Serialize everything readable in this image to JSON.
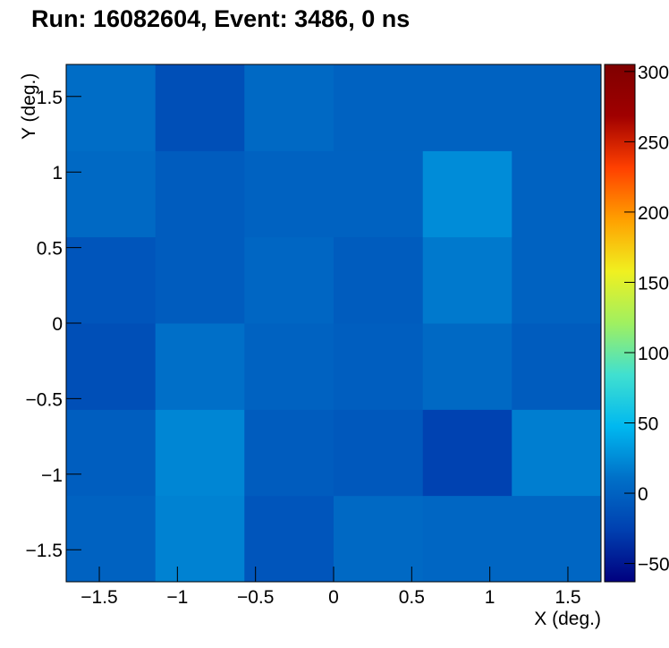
{
  "chart_data": {
    "type": "heatmap",
    "title": "Run: 16082604, Event: 3486, 0 ns",
    "x_label": "X (deg.)",
    "y_label": "Y (deg.)",
    "x_bins": [
      -1.712,
      -1.141,
      -0.571,
      0,
      0.571,
      1.141,
      1.712
    ],
    "y_bins": [
      -1.712,
      -1.141,
      -0.571,
      0,
      0.571,
      1.141,
      1.712
    ],
    "values": [
      [
        0,
        20,
        -10,
        5,
        3,
        3
      ],
      [
        -3,
        22,
        -5,
        -8,
        -25,
        18
      ],
      [
        -15,
        10,
        0,
        -3,
        5,
        -5
      ],
      [
        -10,
        -5,
        3,
        -5,
        15,
        0
      ],
      [
        5,
        -5,
        0,
        0,
        25,
        0
      ],
      [
        8,
        -15,
        5,
        0,
        0,
        0
      ]
    ],
    "xlim": [
      -1.712,
      1.712
    ],
    "ylim": [
      -1.712,
      1.712
    ],
    "zlim": [
      -63,
      305
    ],
    "xticks": [
      {
        "value": -1.5,
        "label": "−1.5"
      },
      {
        "value": -1,
        "label": "−1"
      },
      {
        "value": -0.5,
        "label": "−0.5"
      },
      0,
      0.5,
      1,
      1.5
    ],
    "yticks": [
      {
        "value": -1.5,
        "label": "−1.5"
      },
      {
        "value": -1,
        "label": "−1"
      },
      {
        "value": -0.5,
        "label": "−0.5"
      },
      0,
      0.5,
      1,
      1.5
    ],
    "zticks": [
      {
        "value": -50,
        "label": "−50"
      },
      0,
      50,
      100,
      150,
      200,
      250,
      300
    ],
    "colorscale": [
      "#00007f",
      "#0040b0",
      "#0070c8",
      "#00b8f0",
      "#40e0d0",
      "#a0f060",
      "#f0f020",
      "#ffa000",
      "#ff4000",
      "#a00000",
      "#7f0000"
    ]
  }
}
